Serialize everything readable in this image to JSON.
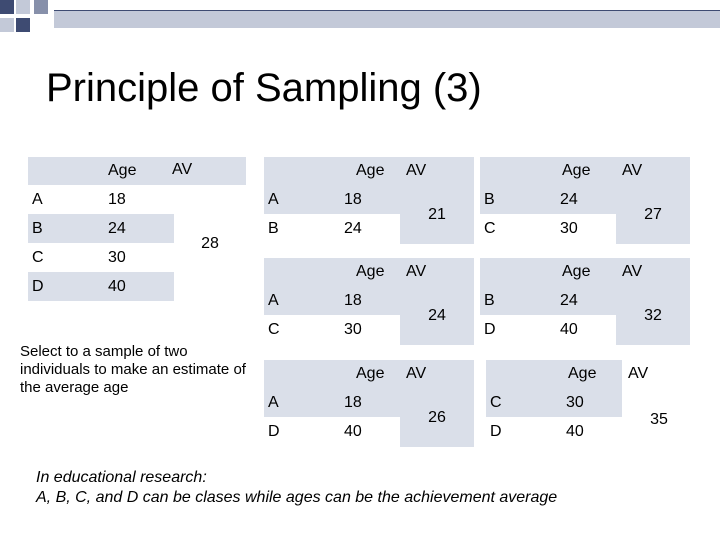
{
  "title": "Principle of Sampling (3)",
  "headers": {
    "age": "Age",
    "av": "AV"
  },
  "population": {
    "rows": [
      {
        "name": "A",
        "age": "18"
      },
      {
        "name": "B",
        "age": "24"
      },
      {
        "name": "C",
        "age": "30"
      },
      {
        "name": "D",
        "age": "40"
      }
    ],
    "av": "28"
  },
  "samples": [
    {
      "rows": [
        {
          "name": "A",
          "age": "18"
        },
        {
          "name": "B",
          "age": "24"
        }
      ],
      "av": "21"
    },
    {
      "rows": [
        {
          "name": "B",
          "age": "24"
        },
        {
          "name": "C",
          "age": "30"
        }
      ],
      "av": "27"
    },
    {
      "rows": [
        {
          "name": "A",
          "age": "18"
        },
        {
          "name": "C",
          "age": "30"
        }
      ],
      "av": "24"
    },
    {
      "rows": [
        {
          "name": "B",
          "age": "24"
        },
        {
          "name": "D",
          "age": "40"
        }
      ],
      "av": "32"
    },
    {
      "rows": [
        {
          "name": "A",
          "age": "18"
        },
        {
          "name": "D",
          "age": "40"
        }
      ],
      "av": "26"
    },
    {
      "rows": [
        {
          "name": "C",
          "age": "30"
        },
        {
          "name": "D",
          "age": "40"
        }
      ],
      "av": "35"
    }
  ],
  "note": "Select to a sample of two individuals to make an estimate of the average age",
  "footer": {
    "line1": "In educational research:",
    "line2": "A, B, C, and D can be clases while ages can be the achievement average"
  },
  "colors": {
    "table_fill": "#dadfe9",
    "deco_dark": "#3e4b72",
    "deco_light": "#c3c9d8"
  }
}
